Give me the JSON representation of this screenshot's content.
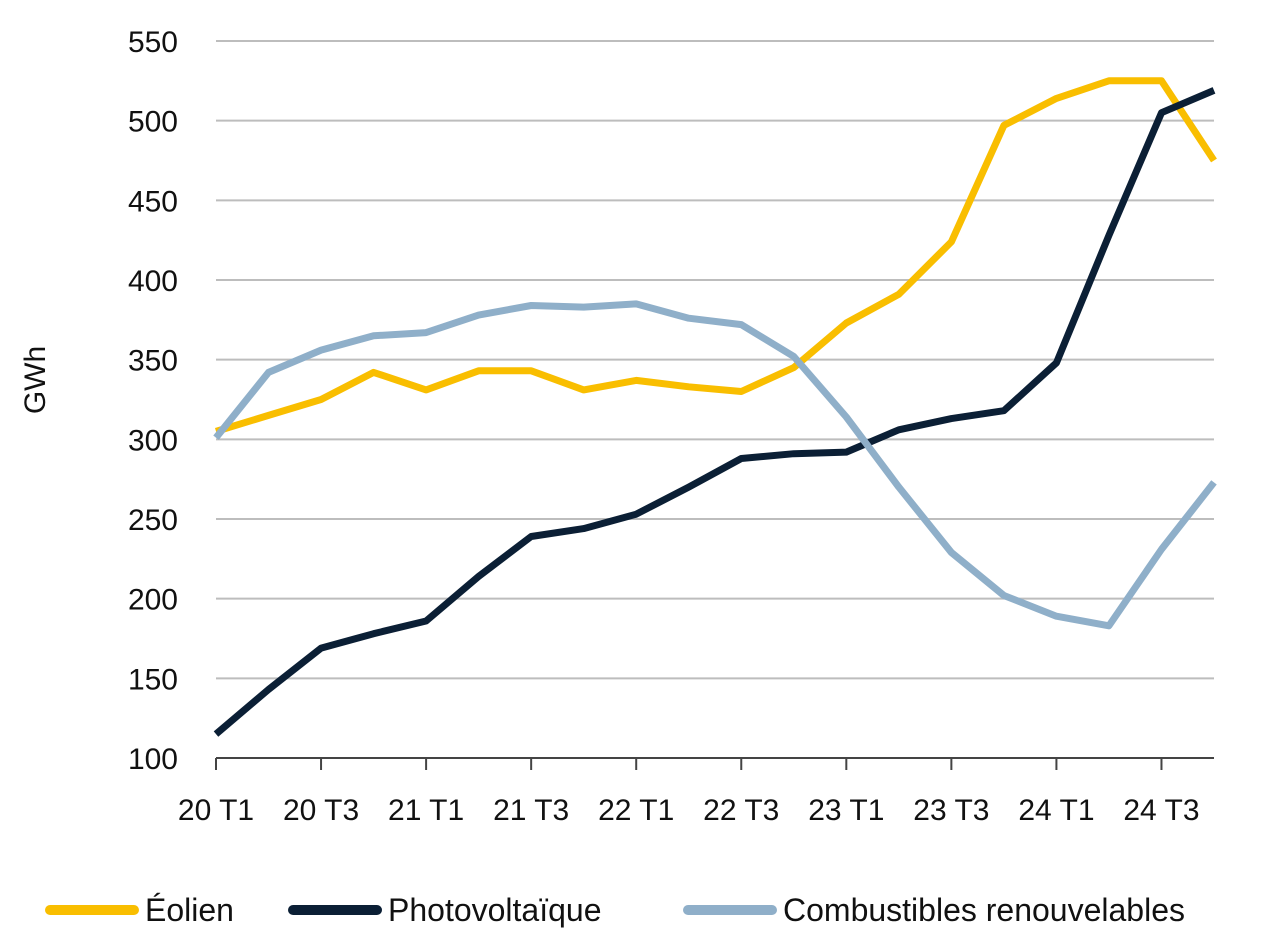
{
  "chart_data": {
    "type": "line",
    "ylabel": "GWh",
    "ylim": [
      100,
      550
    ],
    "yticks": [
      100,
      150,
      200,
      250,
      300,
      350,
      400,
      450,
      500,
      550
    ],
    "grid": "horizontal",
    "legend_position": "bottom",
    "categories": [
      "20 T1",
      "20 T2",
      "20 T3",
      "20 T4",
      "21 T1",
      "21 T2",
      "21 T3",
      "21 T4",
      "22 T1",
      "22 T2",
      "22 T3",
      "22 T4",
      "23 T1",
      "23 T2",
      "23 T3",
      "23 T4",
      "24 T1",
      "24 T2",
      "24 T3",
      "24 T4"
    ],
    "xtick_labels": [
      "20 T1",
      "20 T3",
      "21 T1",
      "21 T3",
      "22 T1",
      "22 T3",
      "23 T1",
      "23 T3",
      "24 T1",
      "24 T3"
    ],
    "series": [
      {
        "name": "Éolien",
        "color": "#F9BE00",
        "values": [
          305,
          315,
          325,
          342,
          331,
          343,
          343,
          331,
          337,
          333,
          330,
          345,
          373,
          391,
          424,
          497,
          514,
          525,
          525,
          475
        ]
      },
      {
        "name": "Photovoltaïque",
        "color": "#0B1F35",
        "values": [
          115,
          143,
          169,
          178,
          186,
          214,
          239,
          244,
          253,
          270,
          288,
          291,
          292,
          306,
          313,
          318,
          348,
          428,
          505,
          519
        ]
      },
      {
        "name": "Combustibles renouvelables",
        "color": "#8FAFC9",
        "values": [
          301,
          342,
          356,
          365,
          367,
          378,
          384,
          383,
          385,
          376,
          372,
          352,
          314,
          270,
          229,
          202,
          189,
          183,
          231,
          273
        ]
      }
    ]
  }
}
